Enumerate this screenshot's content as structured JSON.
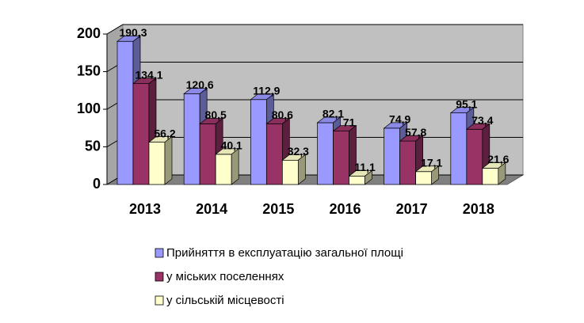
{
  "chart_data": {
    "type": "bar3d",
    "categories": [
      "2013",
      "2014",
      "2015",
      "2016",
      "2017",
      "2018"
    ],
    "series": [
      {
        "name": "Прийняття в експлуатацію загальної площі",
        "color": "#9999ff",
        "values": [
          190.3,
          120.6,
          112.9,
          82.1,
          74.9,
          95.1
        ],
        "value_labels": [
          "190,3",
          "120,6",
          "112,9",
          "82,1",
          "74,9",
          "95,1"
        ]
      },
      {
        "name": "у міських поселеннях",
        "color": "#993366",
        "values": [
          134.1,
          80.5,
          80.6,
          71,
          57.8,
          73.4
        ],
        "value_labels": [
          "134,1",
          "80,5",
          "80,6",
          "71",
          "57,8",
          "73,4"
        ]
      },
      {
        "name": "у сільській місцевості",
        "color": "#ffffcc",
        "values": [
          56.2,
          40.1,
          32.3,
          11.1,
          17.1,
          21.6
        ],
        "value_labels": [
          "56,2",
          "40,1",
          "32,3",
          "11,1",
          "17,1",
          "21,6"
        ]
      }
    ],
    "ylim": [
      0,
      200
    ],
    "yticks": [
      0,
      50,
      100,
      150,
      200
    ],
    "grid": true,
    "legend": "bottom"
  }
}
